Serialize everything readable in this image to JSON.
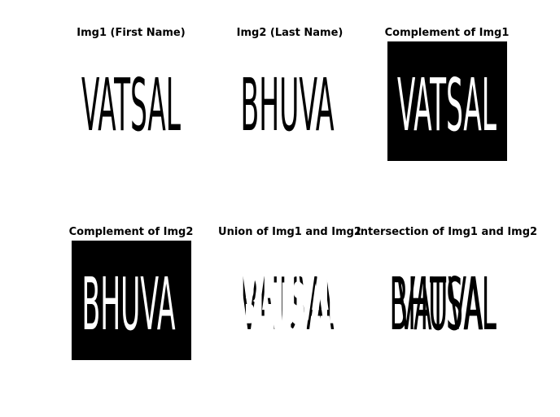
{
  "panels": [
    {
      "title": "Img1 (First Name)",
      "background": "#ffffff",
      "mode": "overlay",
      "words": [
        {
          "text": "VATSAL",
          "color": "#000000"
        }
      ]
    },
    {
      "title": "Img2 (Last Name)",
      "background": "#ffffff",
      "mode": "overlay",
      "words": [
        {
          "text": "BHUVA",
          "color": "#000000"
        }
      ]
    },
    {
      "title": "Complement of Img1",
      "background": "#000000",
      "mode": "overlay",
      "words": [
        {
          "text": "VATSAL",
          "color": "#ffffff"
        }
      ]
    },
    {
      "title": "Complement of Img2",
      "background": "#000000",
      "mode": "overlay",
      "words": [
        {
          "text": "BHUVA",
          "color": "#ffffff"
        }
      ]
    },
    {
      "title": "Union of Img1 and Img2",
      "background": "#ffffff",
      "mode": "overlap",
      "words": [
        {
          "text": "VATSAL",
          "color": "#000000"
        },
        {
          "text": "BHUVA",
          "color": "#000000"
        }
      ]
    },
    {
      "title": "Intersection of Img1 and Img2",
      "background": "#ffffff",
      "mode": "overlay",
      "words": [
        {
          "text": "VATSAL",
          "color": "#000000"
        },
        {
          "text": "BHUVA",
          "color": "#000000"
        }
      ]
    }
  ]
}
